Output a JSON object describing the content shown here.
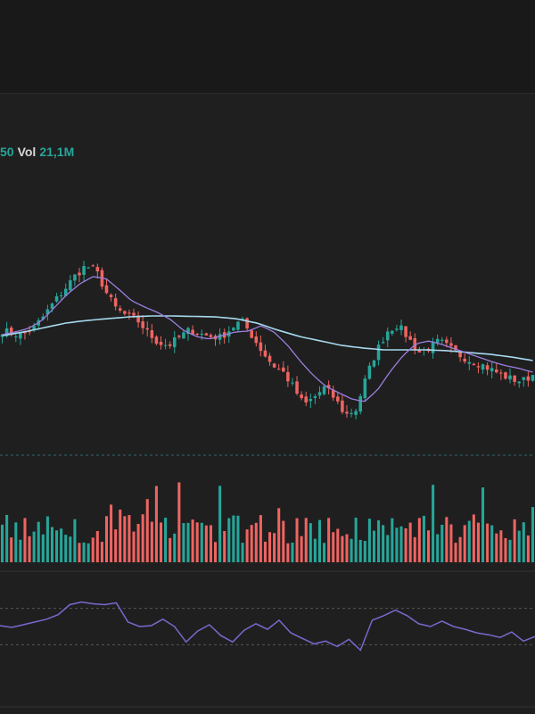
{
  "legend": {
    "prev_value": "50",
    "volume_label": "Vol",
    "volume_value": "21,1M"
  },
  "colors": {
    "up": "#26a69a",
    "down": "#ef6461",
    "ma_short": "#9c7fe0",
    "ma_long": "#a6d9ee",
    "oscillator": "#7b68cf",
    "background": "#1f1f1f"
  },
  "chart_data": {
    "type": "candlestick",
    "price_trend": [
      47,
      46.6,
      46.5,
      47.2,
      48.6,
      50.2,
      51.6,
      53.1,
      54.2,
      53.7,
      51.2,
      49.3,
      48.6,
      48.1,
      46.7,
      45.6,
      45.3,
      46.2,
      47.0,
      46.6,
      46.3,
      46.2,
      47.2,
      48.1,
      46.4,
      44.6,
      43.1,
      42.3,
      40.6,
      38.6,
      39.5,
      40.6,
      39.3,
      37.5,
      38.1,
      41.8,
      44.7,
      46.9,
      47.6,
      46.2,
      44.5,
      45.0,
      45.8,
      45.0,
      44.2,
      43.6,
      43.2,
      42.6,
      42.0,
      41.5,
      41.3,
      42.0
    ],
    "ma_short_trend": [
      46.5,
      46.8,
      47.2,
      48.0,
      49.5,
      51.0,
      52.2,
      53.0,
      52.8,
      51.6,
      50.3,
      49.6,
      49.0,
      48.2,
      47.0,
      46.3,
      46.0,
      46.4,
      46.8,
      46.9,
      47.5,
      46.8,
      45.4,
      43.6,
      42.0,
      40.7,
      40.0,
      39.3,
      39.0,
      40.3,
      42.4,
      44.2,
      45.5,
      45.8,
      45.4,
      44.9,
      44.4,
      43.9,
      43.4,
      43.0,
      42.7,
      42.3
    ],
    "ma_long_trend": [
      46.4,
      46.8,
      47.3,
      47.8,
      48.1,
      48.3,
      48.5,
      48.6,
      48.6,
      48.55,
      48.5,
      48.3,
      47.8,
      47.0,
      46.3,
      45.8,
      45.3,
      45.0,
      44.8,
      44.8,
      44.8,
      44.7,
      44.5,
      44.3,
      44.0,
      43.6
    ],
    "oscillator_trend": [
      51,
      49,
      52,
      55,
      58,
      63,
      74,
      77,
      75,
      74,
      76,
      55,
      50,
      51,
      58,
      50,
      33,
      45,
      52,
      40,
      33,
      46,
      53,
      47,
      57,
      43,
      37,
      31,
      34,
      28,
      36,
      24,
      57,
      62,
      68,
      62,
      53,
      50,
      56,
      50,
      47,
      43,
      41,
      38,
      44,
      34,
      39
    ],
    "oscillator_levels": [
      70,
      30
    ]
  }
}
